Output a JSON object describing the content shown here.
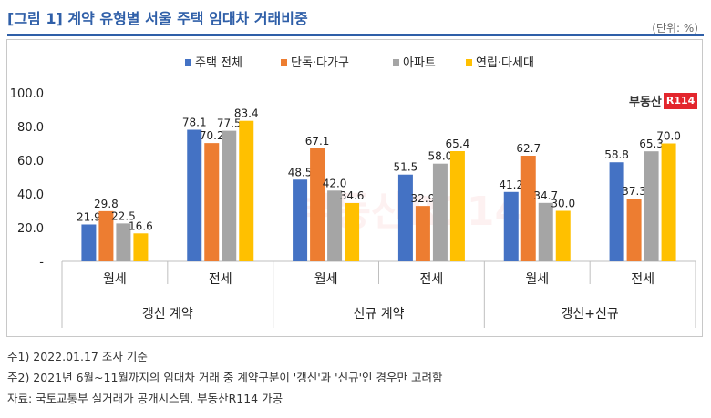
{
  "header": {
    "title": "[그림 1] 계약 유형별 서울 주택 임대차 거래비중",
    "unit": "(단위: %)"
  },
  "logo": {
    "text": "부동산",
    "badge": "R114"
  },
  "colors": {
    "title": "#2f5fa8",
    "brand": "#e3262d"
  },
  "chart_data": {
    "type": "bar",
    "categories": [
      "월세",
      "전세",
      "월세",
      "전세",
      "월세",
      "전세"
    ],
    "groups": [
      {
        "label": "갱신 계약",
        "categories": [
          "월세",
          "전세"
        ]
      },
      {
        "label": "신규 계약",
        "categories": [
          "월세",
          "전세"
        ]
      },
      {
        "label": "갱신+신규",
        "categories": [
          "월세",
          "전세"
        ]
      }
    ],
    "series": [
      {
        "name": "주택 전체",
        "color": "#4472c4",
        "values": [
          21.9,
          78.1,
          48.5,
          51.5,
          41.2,
          58.8
        ]
      },
      {
        "name": "단독·다가구",
        "color": "#ed7d31",
        "values": [
          29.8,
          70.2,
          67.1,
          32.9,
          62.7,
          37.3
        ]
      },
      {
        "name": "아파트",
        "color": "#a5a5a5",
        "values": [
          22.5,
          77.5,
          42.0,
          58.0,
          34.7,
          65.3
        ]
      },
      {
        "name": "연립·다세대",
        "color": "#ffc000",
        "values": [
          16.6,
          83.4,
          34.6,
          65.4,
          30.0,
          70.0
        ]
      }
    ],
    "yticks": [
      "-",
      "20.0",
      "40.0",
      "60.0",
      "80.0",
      "100.0"
    ],
    "ylim": [
      0,
      100
    ],
    "grid": false,
    "legend_position": "top"
  },
  "notes": [
    "주1) 2022.01.17 조사 기준",
    "주2) 2021년 6월~11월까지의 임대차 거래 중 계약구분이 '갱신'과 '신규'인 경우만 고려함",
    "자료: 국토교통부 실거래가 공개시스템, 부동산R114 가공"
  ]
}
